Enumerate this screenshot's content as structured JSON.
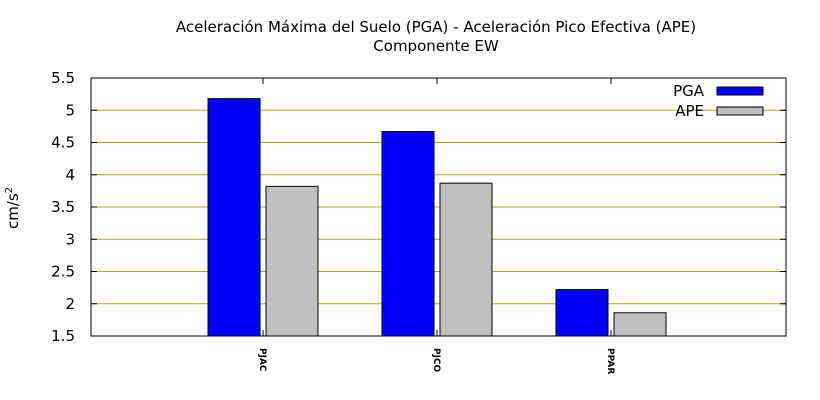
{
  "chart_data": {
    "type": "bar",
    "title": "Aceleración Máxima del Suelo (PGA) -  Aceleración Pico Efectiva (APE)",
    "subtitle": "Componente EW",
    "ylabel": "cm/s",
    "ylabel_sup": "2",
    "xlabel": "",
    "categories": [
      "PJAC",
      "PJCO",
      "PPAR"
    ],
    "series": [
      {
        "name": "PGA",
        "values": [
          5.18,
          4.67,
          2.22
        ],
        "color": "#0000ff"
      },
      {
        "name": "APE",
        "values": [
          3.82,
          3.87,
          1.86
        ],
        "color": "#c0c0c0"
      }
    ],
    "ylim": [
      1.5,
      5.5
    ],
    "yticks": [
      "1.5",
      "2",
      "2.5",
      "3",
      "3.5",
      "4",
      "4.5",
      "5",
      "5.5"
    ],
    "grid": true,
    "grid_color": "#c8a000",
    "legend_position": "top-right"
  }
}
